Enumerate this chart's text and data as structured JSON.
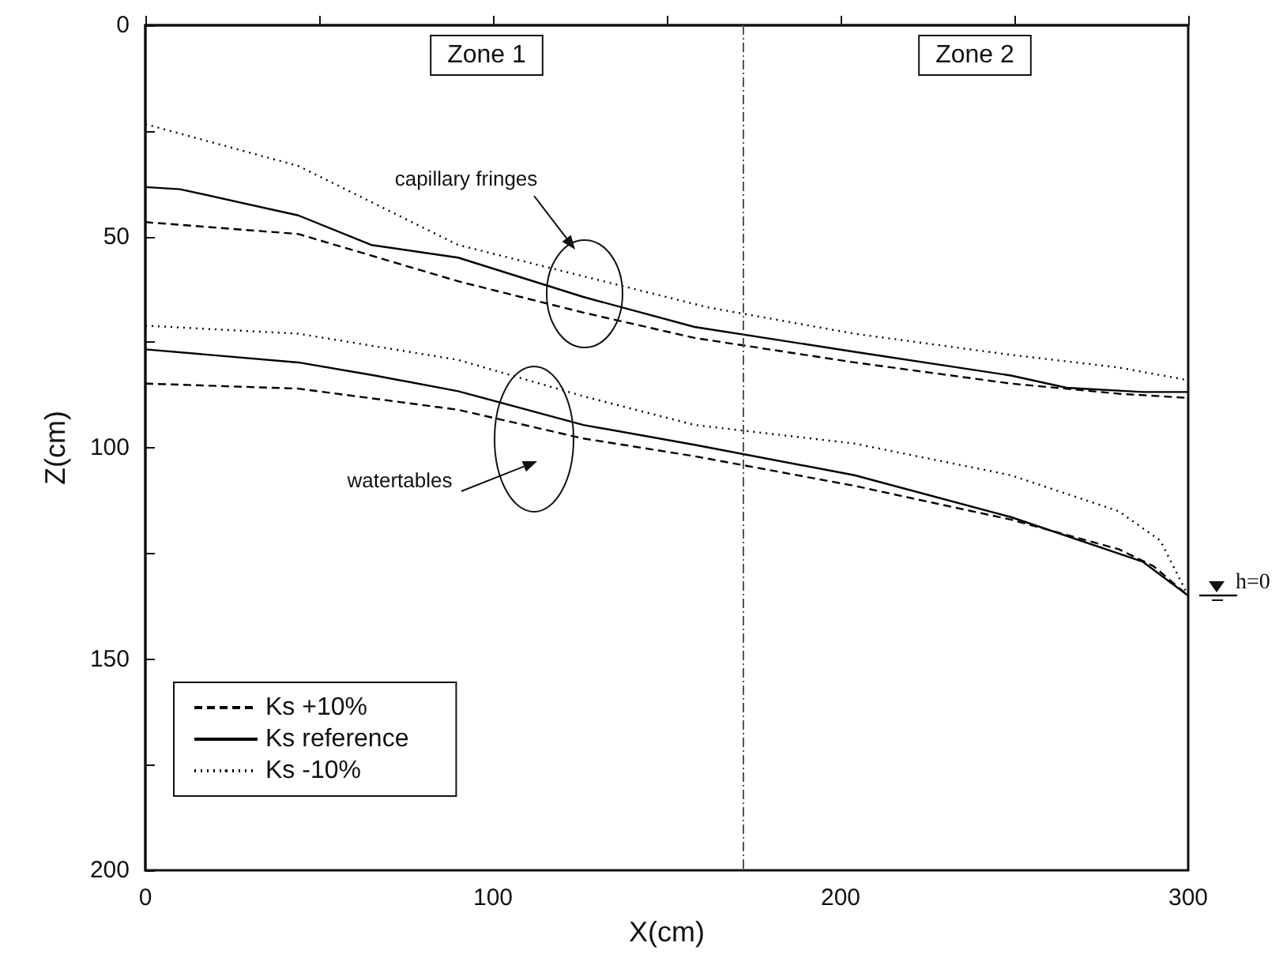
{
  "chart_data": {
    "type": "line",
    "xlabel": "X(cm)",
    "ylabel": "Z(cm)",
    "xlim": [
      0,
      300
    ],
    "xticks": [
      0,
      {
        "value": 50,
        "label": null
      },
      100,
      {
        "value": 150,
        "label": null
      },
      200,
      {
        "value": 250,
        "label": null
      },
      300
    ],
    "ylim": [
      200,
      0
    ],
    "yticks": [
      0,
      {
        "value": 25,
        "label": null
      },
      50,
      {
        "value": 75,
        "label": null
      },
      100,
      {
        "value": 125,
        "label": null
      },
      150,
      {
        "value": 175,
        "label": null
      },
      200
    ],
    "grid": false,
    "legend": "bottom left",
    "marker": "none",
    "series": [
      {
        "name": "Ks +10%",
        "color": "#000000",
        "line_style": "dashed",
        "x": [
          0,
          44,
          90,
          126,
          158,
          204,
          249,
          280,
          300
        ],
        "values": [
          46.6,
          49.4,
          60.6,
          68,
          74,
          79.8,
          84.8,
          87.2,
          88.2
        ]
      },
      {
        "name": "Ks reference",
        "color": "#000000",
        "line_style": "solid",
        "x": [
          0,
          10,
          44,
          65,
          90,
          126,
          158,
          204,
          249,
          265,
          287,
          300
        ],
        "values": [
          38.3,
          38.8,
          45,
          52,
          55,
          64.3,
          71.4,
          77.3,
          82.9,
          85.8,
          86.8,
          86.8
        ]
      },
      {
        "name": "Ks -10%",
        "color": "#000000",
        "line_style": "dotted",
        "x": [
          0,
          44,
          90,
          162,
          204,
          249,
          280,
          300
        ],
        "values": [
          23.4,
          33.3,
          52,
          66.8,
          73,
          78,
          81,
          84
        ]
      },
      {
        "color": "#000000",
        "line_style": "dashed",
        "x": [
          0,
          44,
          90,
          126,
          158,
          204,
          249,
          280,
          290,
          300
        ],
        "values": [
          84.8,
          86,
          91,
          97.8,
          102,
          109,
          117,
          124,
          128,
          135
        ]
      },
      {
        "color": "#000000",
        "line_style": "solid",
        "x": [
          0,
          44,
          66,
          90,
          126,
          158,
          204,
          249,
          287,
          300
        ],
        "values": [
          76.7,
          79.8,
          82.9,
          86.6,
          94.6,
          99.3,
          106.5,
          116.4,
          127,
          135
        ]
      },
      {
        "color": "#000000",
        "line_style": "dotted",
        "x": [
          0,
          44,
          90,
          126,
          158,
          204,
          249,
          280,
          292,
          300
        ],
        "values": [
          71.1,
          73,
          79.2,
          87.8,
          94.6,
          99,
          106.5,
          115,
          122,
          135
        ]
      }
    ],
    "ref_lines": [
      {
        "axis": "x",
        "value": 172,
        "label": null,
        "color": "#555555",
        "line_style": "dashed"
      }
    ],
    "annotations": [
      "Zone 1",
      "Zone 2",
      "capillary fringes",
      "watertables",
      {
        "text": "h=0",
        "x": 300,
        "y": 135
      }
    ]
  }
}
